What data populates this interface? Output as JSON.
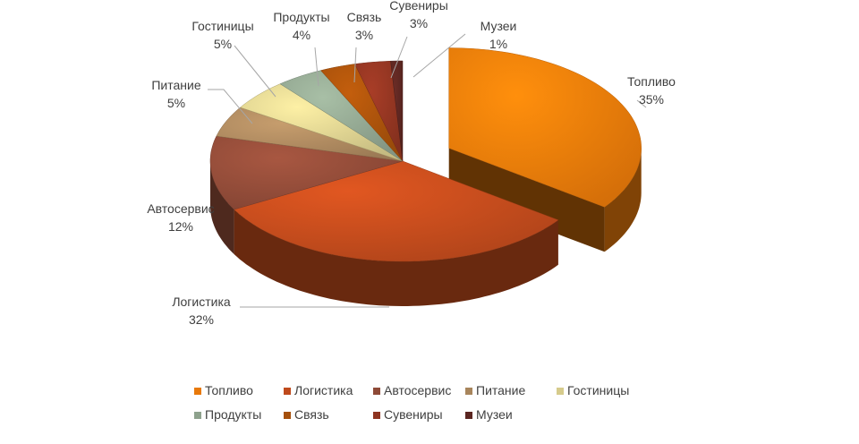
{
  "chart_data": {
    "type": "pie",
    "style": "3d-exploded",
    "categories": [
      "Топливо",
      "Логистика",
      "Автосервис",
      "Питание",
      "Гостиницы",
      "Продукты",
      "Связь",
      "Сувениры",
      "Музеи"
    ],
    "values": [
      35,
      32,
      12,
      5,
      5,
      4,
      3,
      3,
      1
    ],
    "data_labels": [
      "35%",
      "32%",
      "12%",
      "5%",
      "5%",
      "4%",
      "3%",
      "3%",
      "1%"
    ],
    "exploded_slice": "Топливо",
    "legend_position": "bottom",
    "colors": [
      "#E8790A",
      "#BF4A1C",
      "#8E4A37",
      "#A8855C",
      "#D6CB8C",
      "#8EA28D",
      "#A5500B",
      "#8E3421",
      "#5A2520"
    ]
  }
}
